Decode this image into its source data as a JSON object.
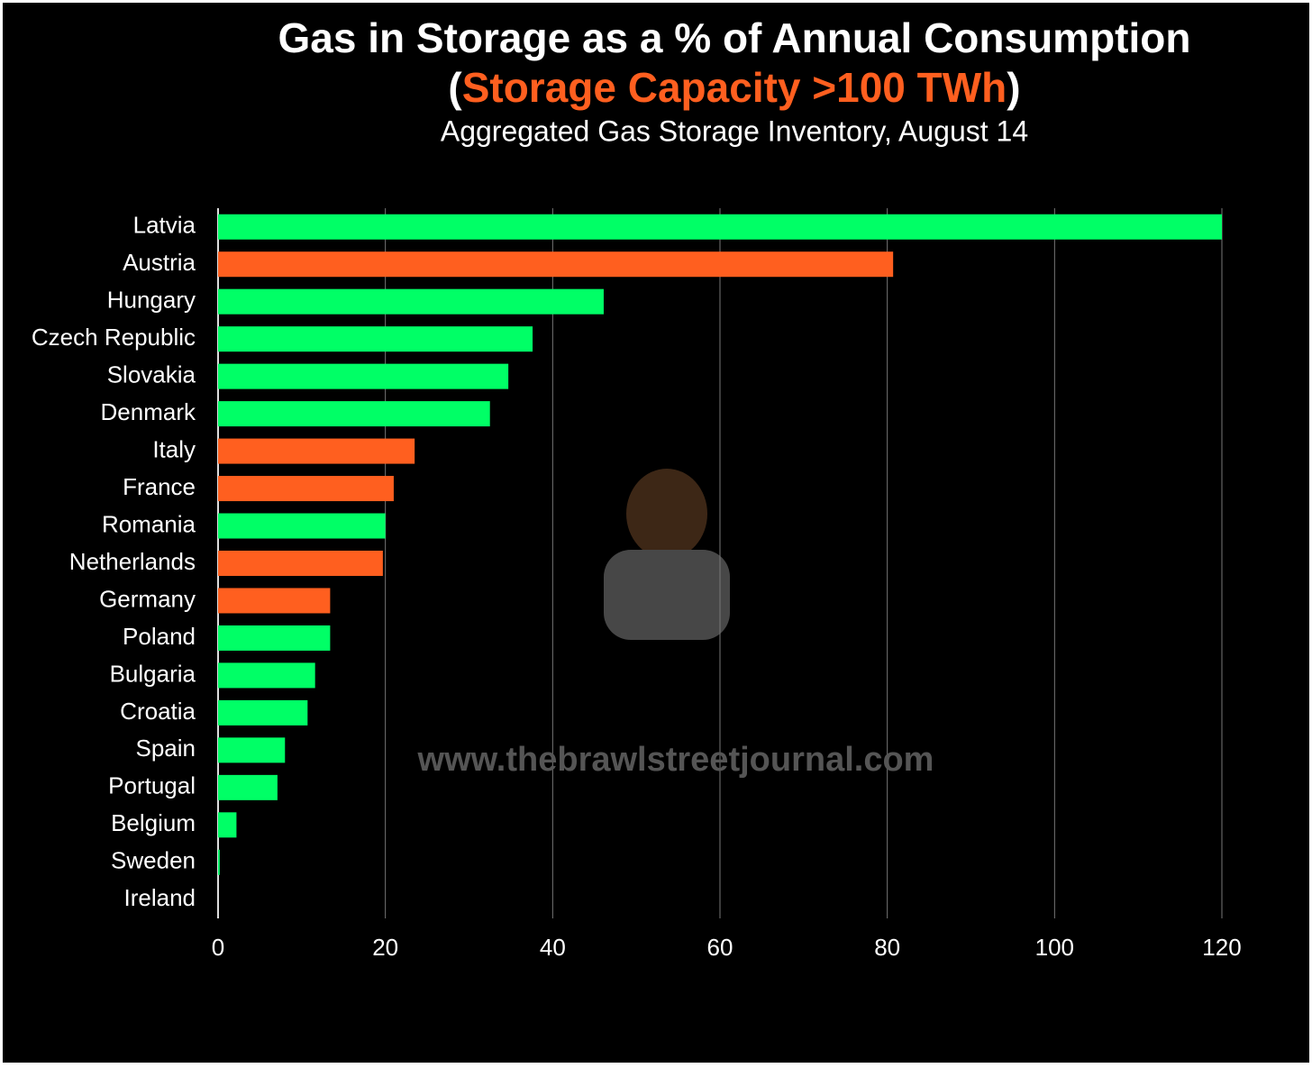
{
  "chart_data": {
    "type": "bar",
    "orientation": "horizontal",
    "title": "Gas in Storage as a % of Annual Consumption",
    "title_line2": [
      "(",
      "Storage Capacity >100 TWh",
      ")"
    ],
    "title_line2_colors": [
      "#ffffff",
      "#ff5f1f",
      "#ffffff"
    ],
    "subtitle": "Aggregated Gas Storage Inventory, August 14",
    "watermark": "www.thebrawlstreetjournal.com",
    "categories": [
      "Latvia",
      "Austria",
      "Hungary",
      "Czech Republic",
      "Slovakia",
      "Denmark",
      "Italy",
      "France",
      "Romania",
      "Netherlands",
      "Germany",
      "Poland",
      "Bulgaria",
      "Croatia",
      "Spain",
      "Portugal",
      "Belgium",
      "Sweden",
      "Ireland"
    ],
    "values": [
      120,
      80.7,
      46.1,
      37.6,
      34.7,
      32.5,
      23.5,
      21.0,
      20.0,
      19.7,
      13.4,
      13.4,
      11.6,
      10.7,
      8.0,
      7.1,
      2.2,
      0.2,
      0
    ],
    "colors": [
      "#00ff66",
      "#ff5f1f",
      "#00ff66",
      "#00ff66",
      "#00ff66",
      "#00ff66",
      "#ff5f1f",
      "#ff5f1f",
      "#00ff66",
      "#ff5f1f",
      "#ff5f1f",
      "#00ff66",
      "#00ff66",
      "#00ff66",
      "#00ff66",
      "#00ff66",
      "#00ff66",
      "#00ff66",
      "#00ff66"
    ],
    "xlim": [
      0,
      120
    ],
    "xticks": [
      0,
      20,
      40,
      60,
      80,
      100,
      120
    ],
    "grid": true
  }
}
